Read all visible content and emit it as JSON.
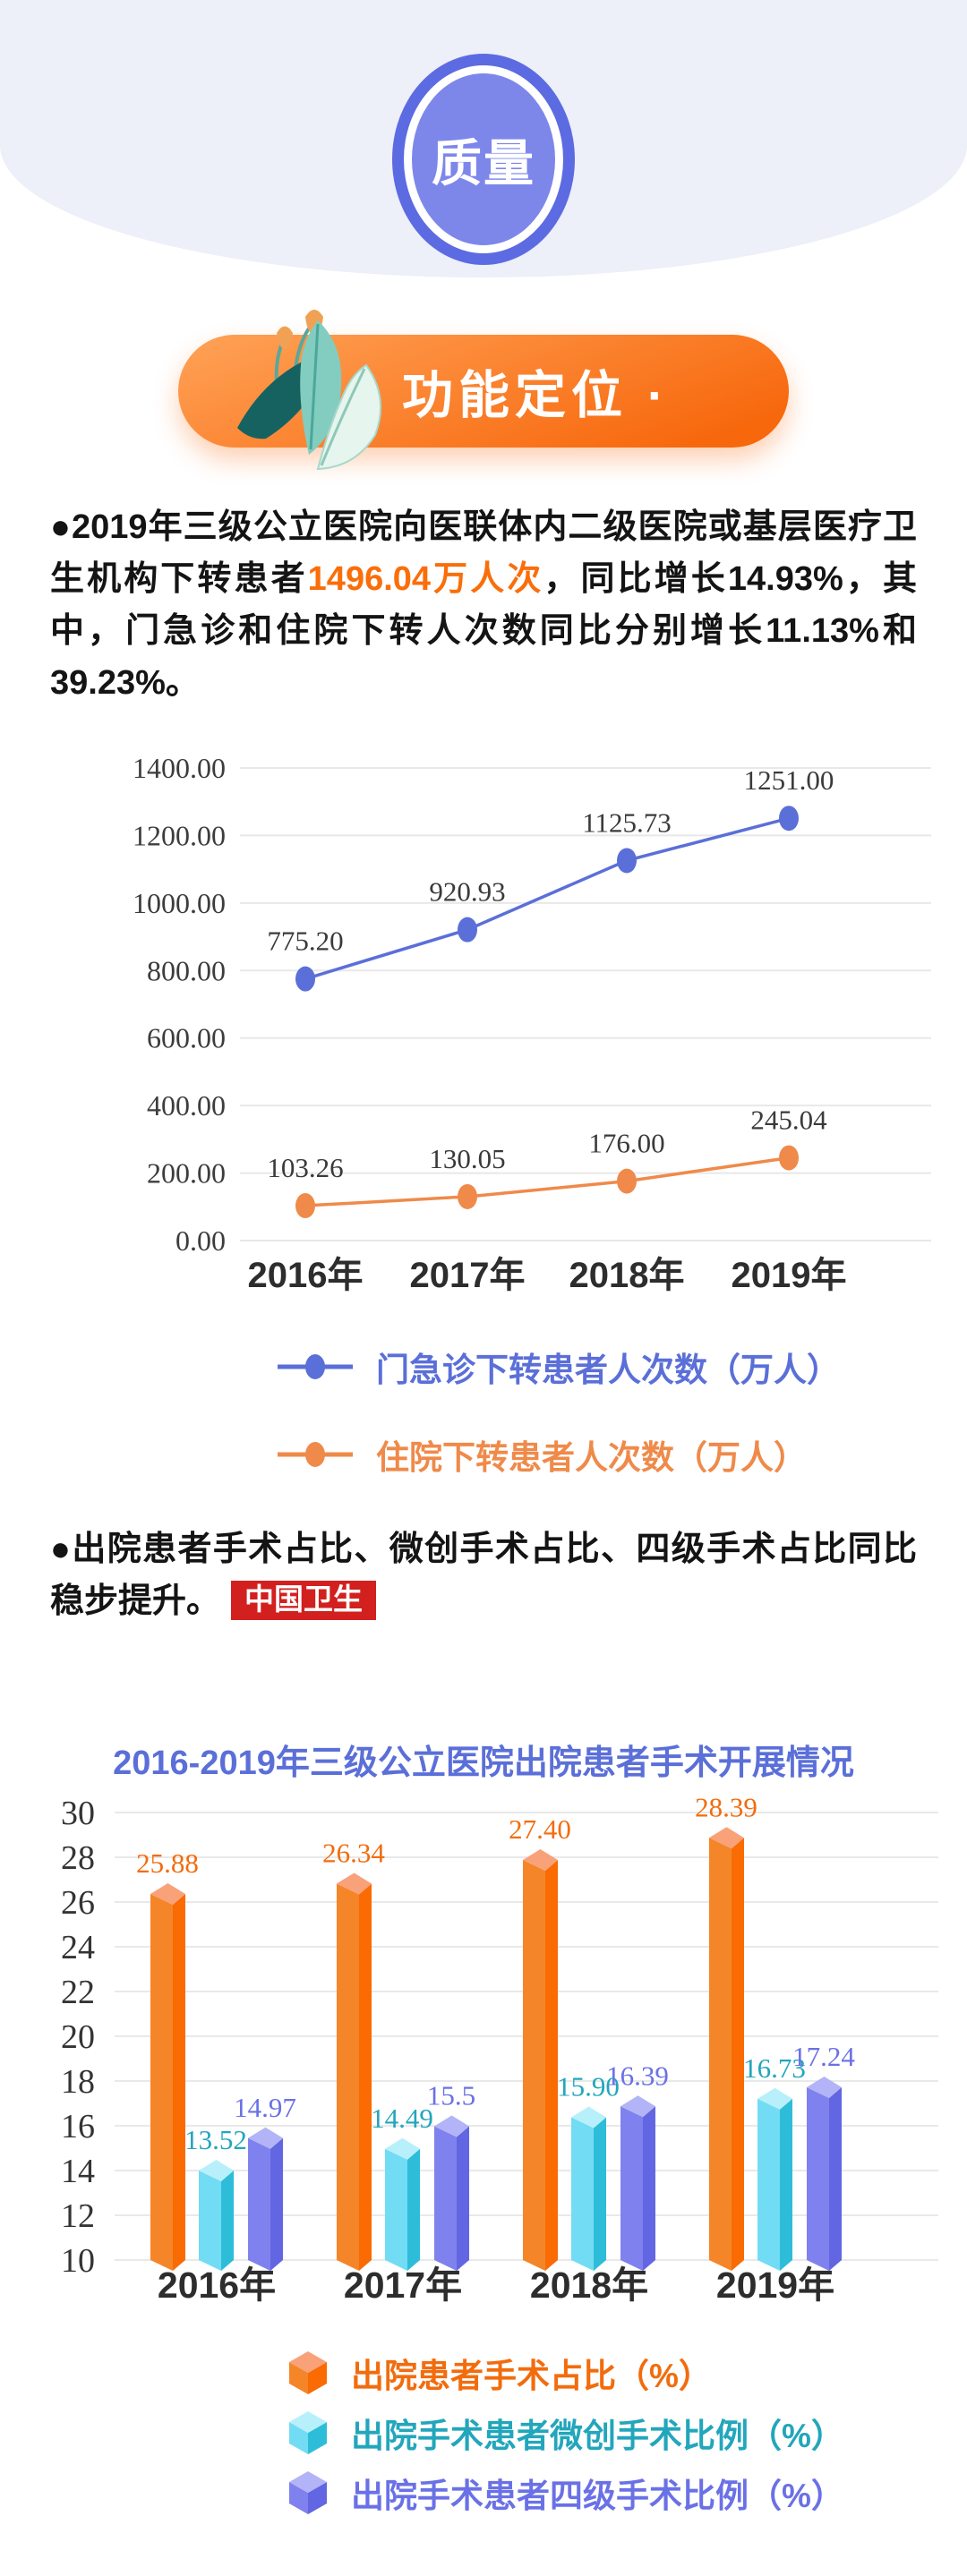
{
  "page": {
    "background": "#ffffff",
    "hero_background": "#edeff9"
  },
  "badge": {
    "label": "质量",
    "outer_color": "#5c6be2",
    "inner_color": "#7d87ea"
  },
  "section_header": {
    "label": "· 功能定位 ·",
    "gradient_start": "#ffa257",
    "gradient_end": "#f7670c"
  },
  "paragraph1": {
    "prefix": "●2019年三级公立医院向医联体内二级医院或基层医疗卫生机构下转患者",
    "highlight": "1496.04万人次",
    "highlight_color": "#fa6e0a",
    "suffix": "，同比增长14.93%，其中，门急诊和住院下转人次数同比分别增长11.13%和39.23%。"
  },
  "paragraph2": {
    "text": "●出院患者手术占比、微创手术占比、四级手术占比同比稳步提升。",
    "source_badge": {
      "label": "中国卫生",
      "background": "#d2201f",
      "text_color": "#ffffff"
    }
  },
  "chart_data": [
    {
      "type": "line",
      "categories": [
        "2016年",
        "2017年",
        "2018年",
        "2019年"
      ],
      "ylim": [
        0,
        1400
      ],
      "yticks": [
        "0.00",
        "200.00",
        "400.00",
        "600.00",
        "800.00",
        "1000.00",
        "1200.00",
        "1400.00"
      ],
      "grid": true,
      "legend_position": "bottom",
      "series": [
        {
          "name": "门急诊下转患者人次数（万人）",
          "color": "#5b6fd8",
          "values": [
            "775.20",
            "920.93",
            "1125.73",
            "1251.00"
          ]
        },
        {
          "name": "住院下转患者人次数（万人）",
          "color": "#ef8a4a",
          "values": [
            "103.26",
            "130.05",
            "176.00",
            "245.04"
          ]
        }
      ],
      "label_color": "#3a3a3a",
      "tick_color": "#3c3c3c",
      "grid_color": "#e8e8e8",
      "axis_label_color": "#2d2d2d"
    },
    {
      "type": "bar",
      "title": "2016-2019年三级公立医院出院患者手术开展情况",
      "title_color": "#5b6fd8",
      "categories": [
        "2016年",
        "2017年",
        "2018年",
        "2019年"
      ],
      "ylim": [
        10,
        30
      ],
      "yticks": [
        "10",
        "12",
        "14",
        "16",
        "18",
        "20",
        "22",
        "24",
        "26",
        "28",
        "30"
      ],
      "grid": true,
      "legend_position": "bottom",
      "series": [
        {
          "name": "出院患者手术占比（%）",
          "values": [
            "25.88",
            "26.34",
            "27.40",
            "28.39"
          ],
          "front": "#f58529",
          "side": "#fa6b04",
          "top": "#f9a178",
          "label_color": "#f26c0d"
        },
        {
          "name": "出院手术患者微创手术比例（%）",
          "values": [
            "13.52",
            "14.49",
            "15.90",
            "16.73"
          ],
          "front": "#72dcf4",
          "side": "#2dbdd9",
          "top": "#b7f0fb",
          "label_color": "#22a6bc"
        },
        {
          "name": "出院手术患者四级手术比例（%）",
          "values": [
            "14.97",
            "15.5",
            "16.39",
            "17.24"
          ],
          "front": "#7f82ee",
          "side": "#6266e2",
          "top": "#b2b4f7",
          "label_color": "#6a71e6"
        }
      ],
      "tick_color": "#343434",
      "grid_color": "#e9e9e9",
      "axis_label_color": "#2d2d2d"
    }
  ]
}
